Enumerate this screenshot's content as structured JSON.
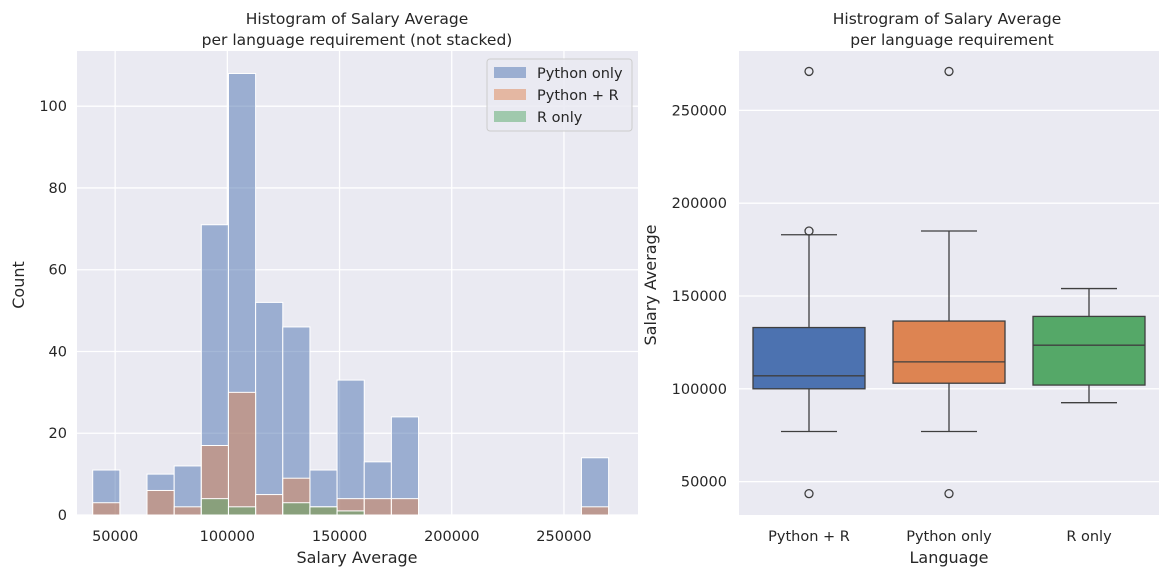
{
  "chart_data": [
    {
      "type": "histogram",
      "title_line1": "Histogram of Salary Average",
      "title_line2": "per language requirement (not stacked)",
      "xlabel": "Salary Average",
      "ylabel": "Count",
      "xlim": [
        33000,
        283000
      ],
      "ylim": [
        0,
        113.5
      ],
      "xticks": [
        50000,
        100000,
        150000,
        200000,
        250000
      ],
      "xtick_labels": [
        "50000",
        "100000",
        "150000",
        "200000",
        "250000"
      ],
      "yticks": [
        0,
        20,
        40,
        60,
        80,
        100
      ],
      "ytick_labels": [
        "0",
        "20",
        "40",
        "60",
        "80",
        "100"
      ],
      "bin_edges": [
        40000,
        52100,
        64200,
        76300,
        88400,
        100500,
        112600,
        124700,
        136800,
        148900,
        161000,
        173100,
        185200,
        197300,
        209400,
        221500,
        233600,
        245700,
        257800,
        269900
      ],
      "grid": true,
      "legend": "top-right",
      "series": [
        {
          "name": "Python only",
          "color": "#4c72b0",
          "counts": [
            11,
            0,
            10,
            12,
            71,
            108,
            52,
            46,
            11,
            33,
            13,
            24,
            0,
            0,
            0,
            0,
            0,
            0,
            14
          ]
        },
        {
          "name": "Python + R",
          "color": "#dd8452",
          "counts": [
            3,
            0,
            6,
            2,
            17,
            30,
            5,
            9,
            2,
            4,
            4,
            4,
            0,
            0,
            0,
            0,
            0,
            0,
            2
          ]
        },
        {
          "name": "R only",
          "color": "#55a868",
          "counts": [
            0,
            0,
            0,
            0,
            4,
            2,
            0,
            3,
            2,
            1,
            0,
            0,
            0,
            0,
            0,
            0,
            0,
            0,
            0
          ]
        }
      ]
    },
    {
      "type": "box",
      "title_line1": "Histrogram of Salary Average",
      "title_line2": "per language requirement",
      "xlabel": "Language",
      "ylabel": "Salary Average",
      "ylim": [
        32000,
        282000
      ],
      "yticks": [
        50000,
        100000,
        150000,
        200000,
        250000
      ],
      "ytick_labels": [
        "50000",
        "100000",
        "150000",
        "200000",
        "250000"
      ],
      "grid": true,
      "categories": [
        "Python + R",
        "Python only",
        "R only"
      ],
      "boxes": [
        {
          "name": "Python + R",
          "color": "#4c72b0",
          "whisker_low": 77000,
          "q1": 100000,
          "median": 107000,
          "q3": 133000,
          "whisker_high": 183000,
          "outliers": [
            43500,
            185000,
            271000
          ]
        },
        {
          "name": "Python only",
          "color": "#dd8452",
          "whisker_low": 77000,
          "q1": 103000,
          "median": 114500,
          "q3": 136500,
          "whisker_high": 185000,
          "outliers": [
            43500,
            271000
          ]
        },
        {
          "name": "R only",
          "color": "#55a868",
          "whisker_low": 92500,
          "q1": 102000,
          "median": 123500,
          "q3": 139000,
          "whisker_high": 154000,
          "outliers": []
        }
      ]
    }
  ]
}
